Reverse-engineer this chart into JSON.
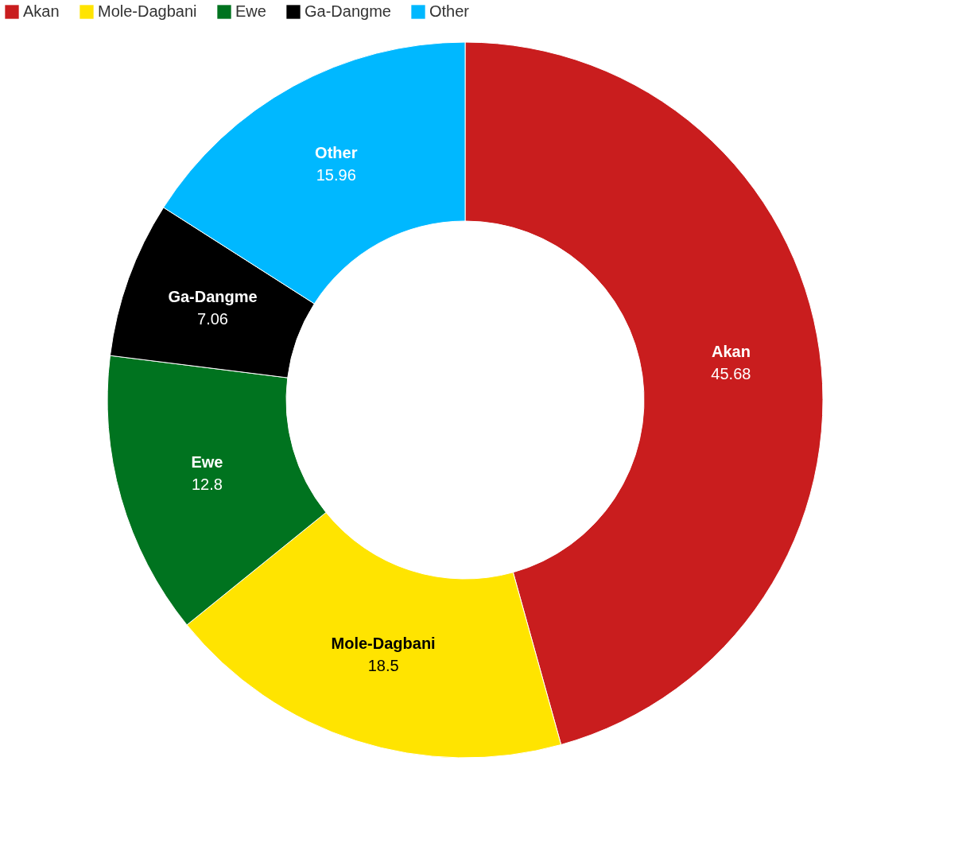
{
  "chart_data": {
    "type": "donut",
    "categories": [
      "Akan",
      "Mole-Dagbani",
      "Ewe",
      "Ga-Dangme",
      "Other"
    ],
    "values": [
      45.68,
      18.5,
      12.8,
      7.06,
      15.96
    ],
    "colors": [
      "#c91d1e",
      "#ffe400",
      "#00731f",
      "#000000",
      "#00b8ff"
    ],
    "data_labels": true,
    "legend": "top left"
  }
}
